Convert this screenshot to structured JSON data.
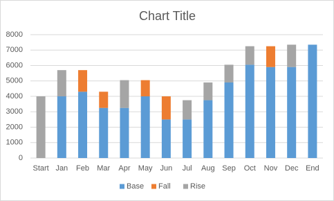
{
  "chart_data": {
    "type": "bar",
    "stacked": true,
    "title": "Chart Title",
    "categories": [
      "Start",
      "Jan",
      "Feb",
      "Mar",
      "Apr",
      "May",
      "Jun",
      "Jul",
      "Aug",
      "Sep",
      "Oct",
      "Nov",
      "Dec",
      "End"
    ],
    "series": [
      {
        "name": "Base",
        "color": "#5b9bd5",
        "values": [
          0,
          4000,
          4300,
          3250,
          3250,
          4000,
          2500,
          2500,
          3750,
          4900,
          6050,
          5900,
          5900,
          7350
        ]
      },
      {
        "name": "Fall",
        "color": "#ed7d31",
        "values": [
          0,
          0,
          1400,
          1050,
          0,
          1050,
          1500,
          0,
          0,
          0,
          0,
          1350,
          0,
          0
        ]
      },
      {
        "name": "Rise",
        "color": "#a5a5a5",
        "values": [
          4000,
          1700,
          0,
          0,
          1800,
          0,
          0,
          1250,
          1150,
          1150,
          1200,
          0,
          1450,
          0
        ]
      }
    ],
    "ylim": [
      0,
      8000
    ],
    "yticks": [
      0,
      1000,
      2000,
      3000,
      4000,
      5000,
      6000,
      7000,
      8000
    ],
    "grid": true,
    "legend": "bottom"
  }
}
